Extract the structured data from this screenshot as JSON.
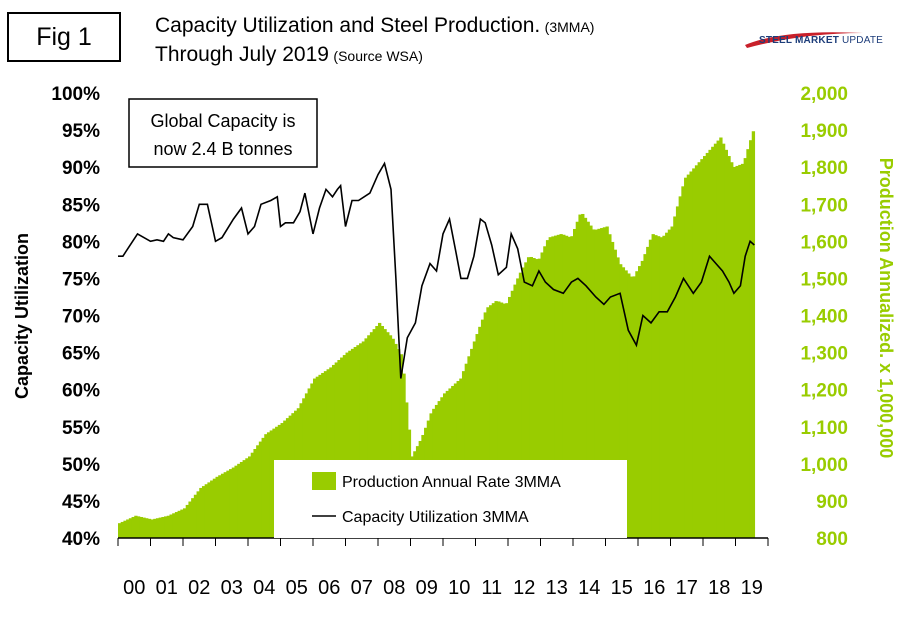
{
  "figure_label": "Fig 1",
  "title": {
    "line1_main": "Capacity Utilization and Steel Production.",
    "line1_small": "(3MMA)",
    "line2_main": "Through July 2019",
    "line2_small": "(Source WSA)"
  },
  "brand": {
    "bold": "STEEL MARKET",
    "light": "UPDATE",
    "logo": "swoosh-logo"
  },
  "colors": {
    "production": "#99cc00",
    "utilization": "#000000",
    "right_axis": "#99cc00",
    "left_axis": "#000000"
  },
  "chart_data": {
    "type": "bar",
    "title": "Capacity Utilization and Steel Production. (3MMA) Through July 2019",
    "annotation": [
      "Global Capacity is",
      "now 2.4 B tonnes"
    ],
    "ylabel": "Capacity Utilization",
    "ylabel_right": "Production Annualized. x 1,000,000",
    "ylim": [
      40,
      100
    ],
    "ylim_right": [
      800,
      2000
    ],
    "y_ticks": [
      "40%",
      "45%",
      "50%",
      "55%",
      "60%",
      "65%",
      "70%",
      "75%",
      "80%",
      "85%",
      "90%",
      "95%",
      "100%"
    ],
    "y_right_ticks": [
      "800",
      "900",
      "1,000",
      "1,100",
      "1,200",
      "1,300",
      "1,400",
      "1,500",
      "1,600",
      "1,700",
      "1,800",
      "1,900",
      "2,000"
    ],
    "categories": [
      "00",
      "01",
      "02",
      "03",
      "04",
      "05",
      "06",
      "07",
      "08",
      "09",
      "10",
      "11",
      "12",
      "13",
      "14",
      "15",
      "16",
      "17",
      "18",
      "19"
    ],
    "grid": false,
    "legend_position": "bottom-center",
    "series": [
      {
        "name": "Production Annual Rate 3MMA",
        "type": "bar",
        "axis": "right",
        "x": [
          2000.0,
          2000.5,
          2001.0,
          2001.5,
          2002.0,
          2002.5,
          2003.0,
          2003.5,
          2004.0,
          2004.5,
          2005.0,
          2005.5,
          2006.0,
          2006.5,
          2007.0,
          2007.5,
          2008.0,
          2008.4,
          2008.7,
          2008.85,
          2009.0,
          2009.3,
          2009.6,
          2010.0,
          2010.5,
          2011.0,
          2011.3,
          2011.6,
          2011.9,
          2012.3,
          2012.6,
          2012.9,
          2013.2,
          2013.6,
          2013.9,
          2014.2,
          2014.6,
          2015.0,
          2015.4,
          2015.8,
          2016.1,
          2016.4,
          2016.7,
          2017.0,
          2017.4,
          2017.8,
          2018.1,
          2018.5,
          2018.9,
          2019.2,
          2019.58
        ],
        "values": [
          840,
          860,
          850,
          860,
          880,
          935,
          965,
          990,
          1020,
          1080,
          1110,
          1150,
          1230,
          1260,
          1300,
          1330,
          1380,
          1340,
          1290,
          1150,
          1020,
          1070,
          1140,
          1190,
          1230,
          1350,
          1420,
          1440,
          1430,
          1510,
          1560,
          1550,
          1610,
          1620,
          1610,
          1680,
          1630,
          1640,
          1540,
          1500,
          1550,
          1620,
          1610,
          1640,
          1770,
          1810,
          1840,
          1880,
          1800,
          1810,
          1920
        ]
      },
      {
        "name": "Capacity Utilization 3MMA",
        "type": "line",
        "axis": "left",
        "x": [
          2000.0,
          2000.15,
          2000.3,
          2000.6,
          2001.0,
          2001.2,
          2001.4,
          2001.55,
          2001.7,
          2002.0,
          2002.3,
          2002.5,
          2002.75,
          2003.0,
          2003.2,
          2003.55,
          2003.8,
          2004.0,
          2004.2,
          2004.4,
          2004.7,
          2004.9,
          2005.0,
          2005.15,
          2005.4,
          2005.6,
          2005.75,
          2006.0,
          2006.2,
          2006.4,
          2006.6,
          2006.75,
          2006.85,
          2007.0,
          2007.2,
          2007.4,
          2007.75,
          2008.0,
          2008.2,
          2008.4,
          2008.55,
          2008.7,
          2008.9,
          2009.15,
          2009.35,
          2009.6,
          2009.8,
          2010.0,
          2010.2,
          2010.4,
          2010.55,
          2010.75,
          2010.95,
          2011.15,
          2011.3,
          2011.5,
          2011.7,
          2011.95,
          2012.1,
          2012.3,
          2012.5,
          2012.75,
          2012.95,
          2013.15,
          2013.4,
          2013.7,
          2013.95,
          2014.15,
          2014.4,
          2014.7,
          2014.95,
          2015.15,
          2015.45,
          2015.7,
          2015.95,
          2016.15,
          2016.4,
          2016.65,
          2016.9,
          2017.15,
          2017.4,
          2017.7,
          2017.95,
          2018.2,
          2018.4,
          2018.6,
          2018.8,
          2018.95,
          2019.15,
          2019.3,
          2019.45,
          2019.58
        ],
        "values": [
          78.0,
          78.0,
          79.0,
          81.0,
          80.0,
          80.2,
          80.0,
          81.0,
          80.5,
          80.2,
          82.0,
          85.0,
          85.0,
          80.0,
          80.5,
          83.0,
          84.5,
          81.0,
          82.0,
          85.0,
          85.5,
          86.0,
          82.0,
          82.5,
          82.5,
          84.0,
          86.5,
          81.0,
          84.5,
          87.0,
          86.0,
          87.0,
          87.5,
          82.0,
          85.5,
          85.5,
          86.5,
          89.0,
          90.5,
          87.0,
          75.0,
          61.5,
          67.0,
          69.0,
          74.0,
          77.0,
          76.0,
          81.0,
          83.0,
          78.5,
          75.0,
          75.0,
          78.0,
          83.0,
          82.5,
          79.5,
          75.5,
          76.5,
          81.0,
          79.0,
          74.5,
          74.0,
          76.0,
          74.5,
          73.5,
          73.0,
          74.5,
          75.0,
          74.0,
          72.5,
          71.5,
          72.5,
          73.0,
          68.0,
          66.0,
          70.0,
          69.0,
          70.5,
          70.5,
          72.5,
          75.0,
          73.0,
          74.5,
          78.0,
          77.0,
          76.0,
          74.5,
          73.0,
          74.0,
          78.0,
          80.0,
          79.5
        ]
      }
    ]
  }
}
